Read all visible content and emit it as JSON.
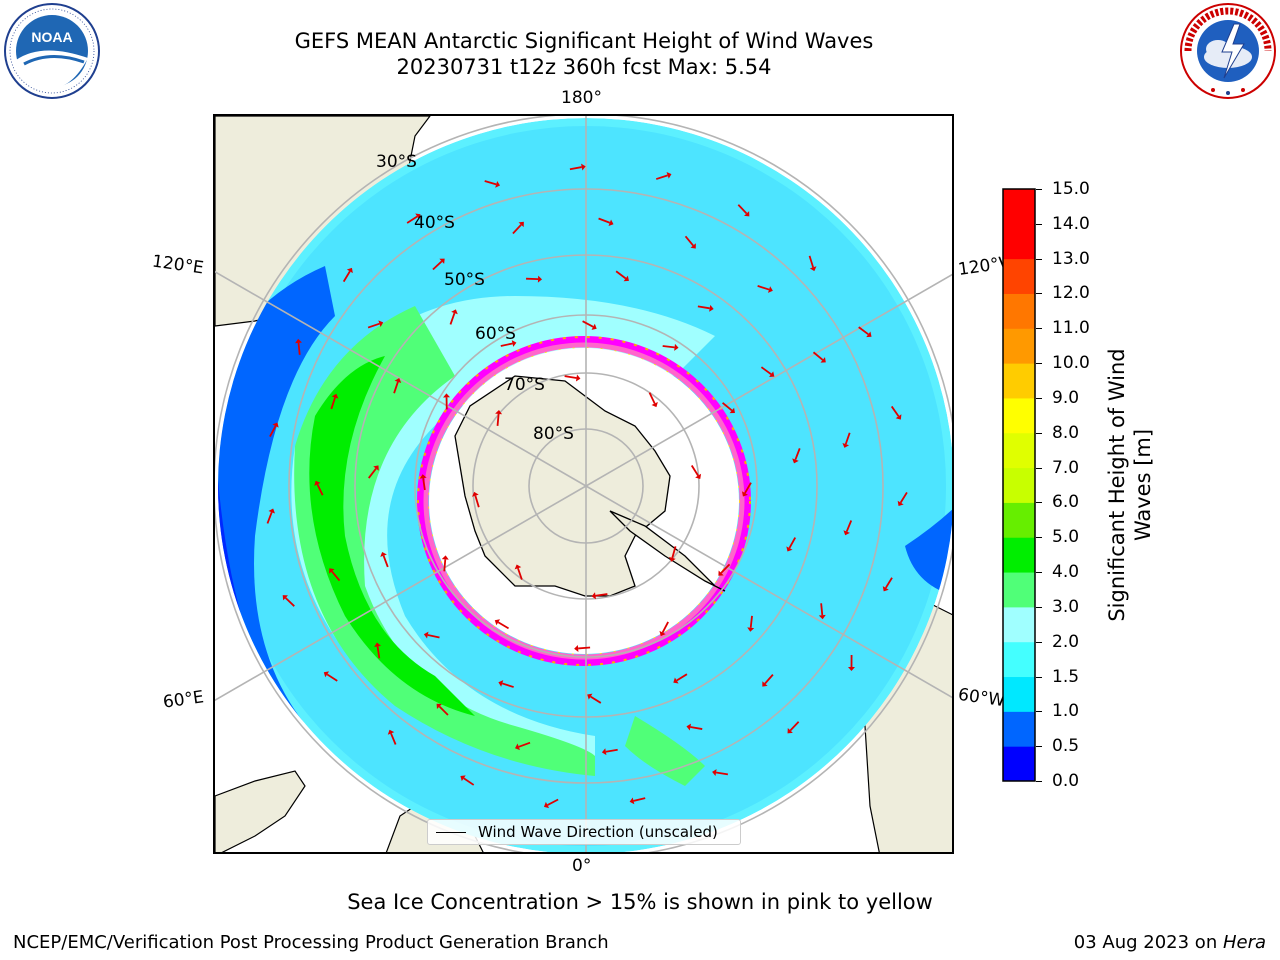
{
  "title": {
    "line1": "GEFS MEAN Antarctic Significant Height of Wind Waves",
    "line2": "20230731 t12z 360h fcst   Max: 5.54"
  },
  "logos": {
    "left": {
      "name": "noaa-logo",
      "text": "NOAA",
      "ring_text": "NATIONAL OCEANIC AND ATMOSPHERIC ADMINISTRATION · U.S. DEPARTMENT OF COMMERCE"
    },
    "right": {
      "name": "national-weather-service-logo",
      "ring_text": "NATIONAL WEATHER SERVICE"
    }
  },
  "map": {
    "projection": "south-polar-stereographic",
    "longitude_labels": {
      "top": "180°",
      "bottom": "0°",
      "upper_left": "120°E",
      "lower_left": "60°E",
      "upper_right": "120°W",
      "lower_right": "60°W"
    },
    "latitude_labels": [
      "30°S",
      "40°S",
      "50°S",
      "60°S",
      "70°S",
      "80°S"
    ],
    "legend_text": "Wind Wave Direction (unscaled)",
    "arrow_color": "#e00000",
    "land_color": "#eeeddc",
    "ice_colors": [
      "#ff00ff",
      "#ff66cc",
      "#ffaa00",
      "#ffee00"
    ]
  },
  "colorbar": {
    "title_line1": "Significant Height of Wind",
    "title_line2": "Waves [m]",
    "ticks": [
      "0.0",
      "0.5",
      "1.0",
      "1.5",
      "2.0",
      "3.0",
      "4.0",
      "5.0",
      "6.0",
      "7.0",
      "8.0",
      "9.0",
      "10.0",
      "11.0",
      "12.0",
      "13.0",
      "14.0",
      "15.0"
    ],
    "colors": [
      "#0000ff",
      "#0066ff",
      "#00e8ff",
      "#44ffff",
      "#a0ffff",
      "#50ff78",
      "#00ee00",
      "#66ee00",
      "#c8ff00",
      "#e0ff00",
      "#ffff00",
      "#ffcc00",
      "#ff9900",
      "#ff7700",
      "#ff4400",
      "#ff0000",
      "#ff0000"
    ]
  },
  "caption": "Sea Ice Concentration > 15% is shown in pink to yellow",
  "footer": {
    "left": "NCEP/EMC/Verification Post Processing Product Generation Branch",
    "right_date": "03 Aug 2023 on ",
    "right_machine": "Hera"
  }
}
